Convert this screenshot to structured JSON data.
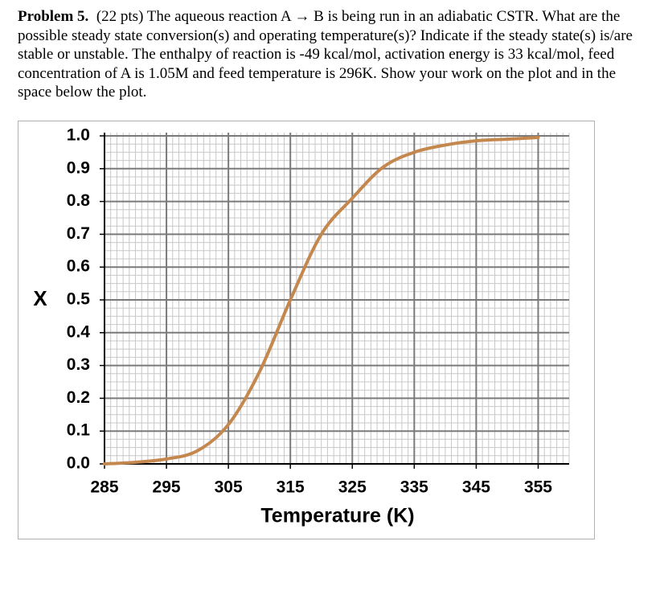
{
  "problem": {
    "heading": "Problem 5.",
    "text": "(22 pts) The aqueous reaction A → B is being run in an adiabatic CSTR. What are the possible steady state conversion(s) and operating temperature(s)? Indicate if the steady state(s) is/are stable or unstable. The enthalpy of reaction is -49 kcal/mol, activation energy is 33 kcal/mol, feed concentration of A is 1.05M and feed temperature is 296K. Show your work on the plot and in the space below the plot."
  },
  "chart_data": {
    "type": "line",
    "x_label": "Temperature (K)",
    "y_label": "X",
    "x": [
      285,
      290,
      295,
      300,
      305,
      310,
      315,
      320,
      325,
      330,
      335,
      340,
      345,
      350,
      355
    ],
    "series": [
      {
        "color": "#c4884f",
        "values": [
          0.0,
          0.005,
          0.015,
          0.04,
          0.12,
          0.28,
          0.5,
          0.7,
          0.81,
          0.905,
          0.95,
          0.972,
          0.985,
          0.99,
          0.995
        ]
      }
    ],
    "xlim": [
      285,
      360
    ],
    "ylim": [
      0,
      1
    ],
    "xticks": [
      285,
      295,
      305,
      315,
      325,
      335,
      345,
      355
    ],
    "yticks": [
      {
        "value": 0,
        "label": "0.0"
      },
      0.1,
      0.2,
      0.3,
      0.4,
      0.5,
      0.6,
      0.7,
      0.8,
      0.9,
      {
        "value": 1,
        "label": "1.0"
      }
    ],
    "grid": true,
    "minor_grid": {
      "x": 10,
      "y": 4
    }
  }
}
